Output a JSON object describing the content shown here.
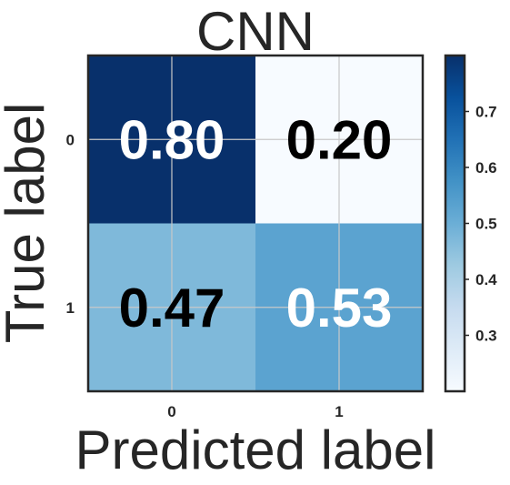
{
  "chart_data": {
    "type": "heatmap",
    "title": "CNN",
    "xlabel": "Predicted label",
    "ylabel": "True label",
    "x_categories": [
      "0",
      "1"
    ],
    "y_categories": [
      "0",
      "1"
    ],
    "values": [
      [
        0.8,
        0.2
      ],
      [
        0.47,
        0.53
      ]
    ],
    "value_labels": [
      [
        "0.80",
        "0.20"
      ],
      [
        "0.47",
        "0.53"
      ]
    ],
    "colorscale": "Blues",
    "colorbar": {
      "range": [
        0.2,
        0.8
      ],
      "ticks": [
        0.3,
        0.4,
        0.5,
        0.6,
        0.7
      ],
      "tick_labels": [
        "0.3",
        "0.4",
        "0.5",
        "0.6",
        "0.7"
      ]
    },
    "grid": true
  }
}
